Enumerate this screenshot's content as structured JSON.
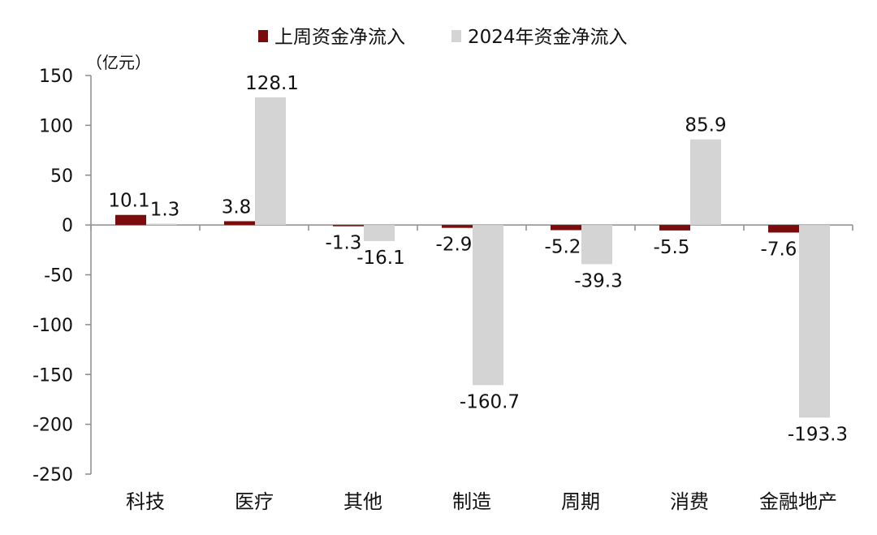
{
  "chart_data": {
    "type": "bar",
    "unit": "（亿元）",
    "categories": [
      "科技",
      "医疗",
      "其他",
      "制造",
      "周期",
      "消费",
      "金融地产"
    ],
    "series": [
      {
        "name": "上周资金净流入",
        "color": "#7b0c0c",
        "values": [
          10.1,
          3.8,
          -1.3,
          -2.9,
          -5.2,
          -5.5,
          -7.6
        ],
        "labels": [
          "10.1",
          "3.8",
          "-1.3",
          "-2.9",
          "-5.2",
          "-5.5",
          "-7.6"
        ]
      },
      {
        "name": "2024年资金净流入",
        "color": "#d4d4d4",
        "values": [
          1.3,
          128.1,
          -16.1,
          -160.7,
          -39.3,
          85.9,
          -193.3
        ],
        "labels": [
          "1.3",
          "128.1",
          "-16.1",
          "-160.7",
          "-39.3",
          "85.9",
          "-193.3"
        ]
      }
    ],
    "ylim": [
      -250,
      150
    ],
    "yticks": [
      150,
      100,
      50,
      0,
      -50,
      -100,
      -150,
      -200,
      -250
    ],
    "ytick_labels": [
      "150",
      "100",
      "50",
      "0",
      "-50",
      "-100",
      "-150",
      "-200",
      "-250"
    ],
    "legend_position": "top-center",
    "grid": false
  }
}
